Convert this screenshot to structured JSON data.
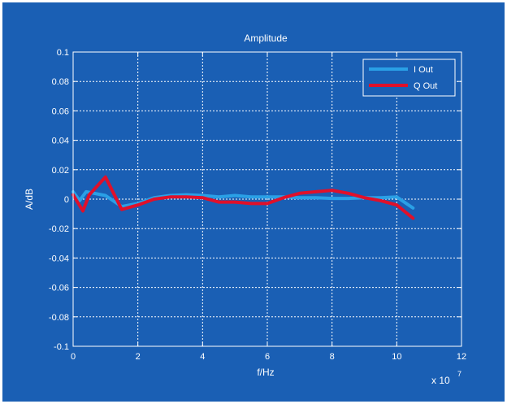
{
  "chart_data": {
    "type": "line",
    "title": "Amplitude",
    "xlabel": "f/Hz",
    "ylabel": "A/dB",
    "x_exponent_label": "x 10",
    "x_exponent_power": "7",
    "xlim": [
      0,
      12
    ],
    "ylim": [
      -0.1,
      0.1
    ],
    "grid": true,
    "legend_position": "top-right",
    "x_ticks": [
      0,
      2,
      4,
      6,
      8,
      10,
      12
    ],
    "x_tick_labels": [
      "0",
      "2",
      "4",
      "6",
      "8",
      "10",
      "12"
    ],
    "y_ticks": [
      -0.1,
      -0.08,
      -0.06,
      -0.04,
      -0.02,
      0,
      0.02,
      0.04,
      0.06,
      0.08,
      0.1
    ],
    "y_tick_labels": [
      "-0.1",
      "-0.08",
      "-0.06",
      "-0.04",
      "-0.02",
      "0",
      "0.02",
      "0.04",
      "0.06",
      "0.08",
      "0.1"
    ],
    "series": [
      {
        "name": "I Out",
        "color": "#2aa0e6",
        "x": [
          0,
          0.2,
          0.4,
          1.0,
          1.5,
          2.0,
          2.5,
          3.0,
          3.5,
          4.0,
          4.5,
          5.0,
          5.5,
          6.0,
          6.5,
          7.0,
          7.5,
          8.0,
          8.5,
          9.0,
          9.5,
          10.0,
          10.5
        ],
        "y": [
          0.005,
          -0.001,
          0.005,
          0.0025,
          -0.005,
          -0.003,
          0.001,
          0.0025,
          0.003,
          0.0025,
          0.0015,
          0.0025,
          0.0015,
          0.0015,
          0.0015,
          0.001,
          0.001,
          0.0005,
          0.0005,
          0.001,
          0.001,
          0.0015,
          -0.006
        ]
      },
      {
        "name": "Q Out",
        "color": "#e0102a",
        "x": [
          0,
          0.3,
          0.5,
          1.0,
          1.5,
          2.0,
          2.5,
          3.0,
          3.5,
          4.0,
          4.5,
          5.0,
          5.5,
          6.0,
          6.5,
          7.0,
          7.5,
          8.0,
          8.5,
          9.0,
          9.5,
          10.0,
          10.5
        ],
        "y": [
          0.003,
          -0.008,
          0.003,
          0.015,
          -0.007,
          -0.004,
          0.0,
          0.0015,
          0.0015,
          0.001,
          -0.002,
          -0.002,
          -0.003,
          -0.003,
          0.001,
          0.004,
          0.005,
          0.006,
          0.004,
          0.001,
          -0.001,
          -0.004,
          -0.013
        ]
      }
    ]
  },
  "colors": {
    "figure_background": "#ffffff",
    "figure_border": "#1855a8",
    "axes_background": "#1a5fb4",
    "axis_and_text": "#ffffff"
  }
}
